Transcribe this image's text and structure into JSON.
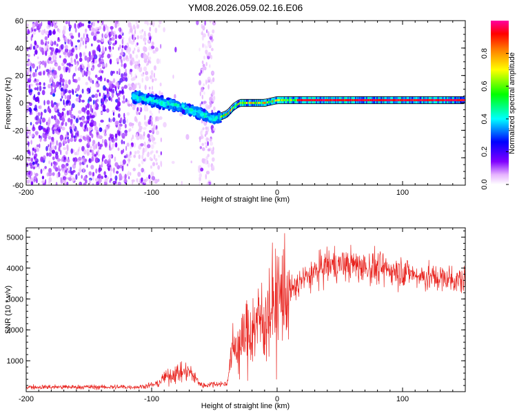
{
  "title": "YM08.2026.059.02.16.E06",
  "chart_data": [
    {
      "type": "heatmap",
      "name": "spectrogram",
      "xlabel": "Height of straight line (km)",
      "ylabel": "Frequency (Hz)",
      "xlim": [
        -200,
        150
      ],
      "ylim": [
        -60,
        60
      ],
      "x_ticks": [
        -200,
        -100,
        0,
        100
      ],
      "y_ticks": [
        -60,
        -40,
        -20,
        0,
        20,
        40,
        60
      ],
      "grid": false,
      "colorbar": {
        "label": "Normalized spectral amplitude",
        "range": [
          0.0,
          1.0
        ],
        "ticks": [
          0.0,
          0.2,
          0.4,
          0.6,
          0.8
        ],
        "colormap": [
          "#ffffff",
          "#ff00ff",
          "#8000ff",
          "#0000ff",
          "#00ffff",
          "#00ff00",
          "#ffff00",
          "#ff8000",
          "#ff0000"
        ]
      },
      "dominant_frequency_trace": {
        "x": [
          -110,
          -100,
          -80,
          -60,
          -50,
          -40,
          -35,
          -30,
          -20,
          -10,
          0,
          10,
          20,
          50,
          100,
          150
        ],
        "y": [
          4,
          2,
          -2,
          -8,
          -12,
          -8,
          -3,
          0,
          0,
          0,
          2,
          2,
          2,
          2,
          2,
          2
        ]
      }
    },
    {
      "type": "line",
      "name": "snr",
      "xlabel": "Height of straight line (km)",
      "ylabel": "SNR (10 * v/v)",
      "xlim": [
        -200,
        150
      ],
      "ylim": [
        0,
        5300
      ],
      "x_ticks": [
        -200,
        -100,
        0,
        100
      ],
      "y_ticks": [
        1000,
        2000,
        3000,
        4000,
        5000
      ],
      "grid": false,
      "series": [
        {
          "name": "SNR",
          "color": "#e8231e",
          "envelope_x": [
            -200,
            -110,
            -95,
            -90,
            -80,
            -70,
            -60,
            -50,
            -40,
            -37,
            -35,
            -30,
            -25,
            -20,
            -15,
            -10,
            -5,
            0,
            10,
            20,
            40,
            60,
            80,
            100,
            120,
            150
          ],
          "envelope_y": [
            150,
            150,
            250,
            450,
            600,
            650,
            200,
            250,
            250,
            1000,
            1400,
            1500,
            1800,
            2000,
            2300,
            2300,
            2700,
            3000,
            3200,
            3600,
            4100,
            4100,
            4000,
            3900,
            3700,
            3600
          ]
        }
      ]
    }
  ]
}
